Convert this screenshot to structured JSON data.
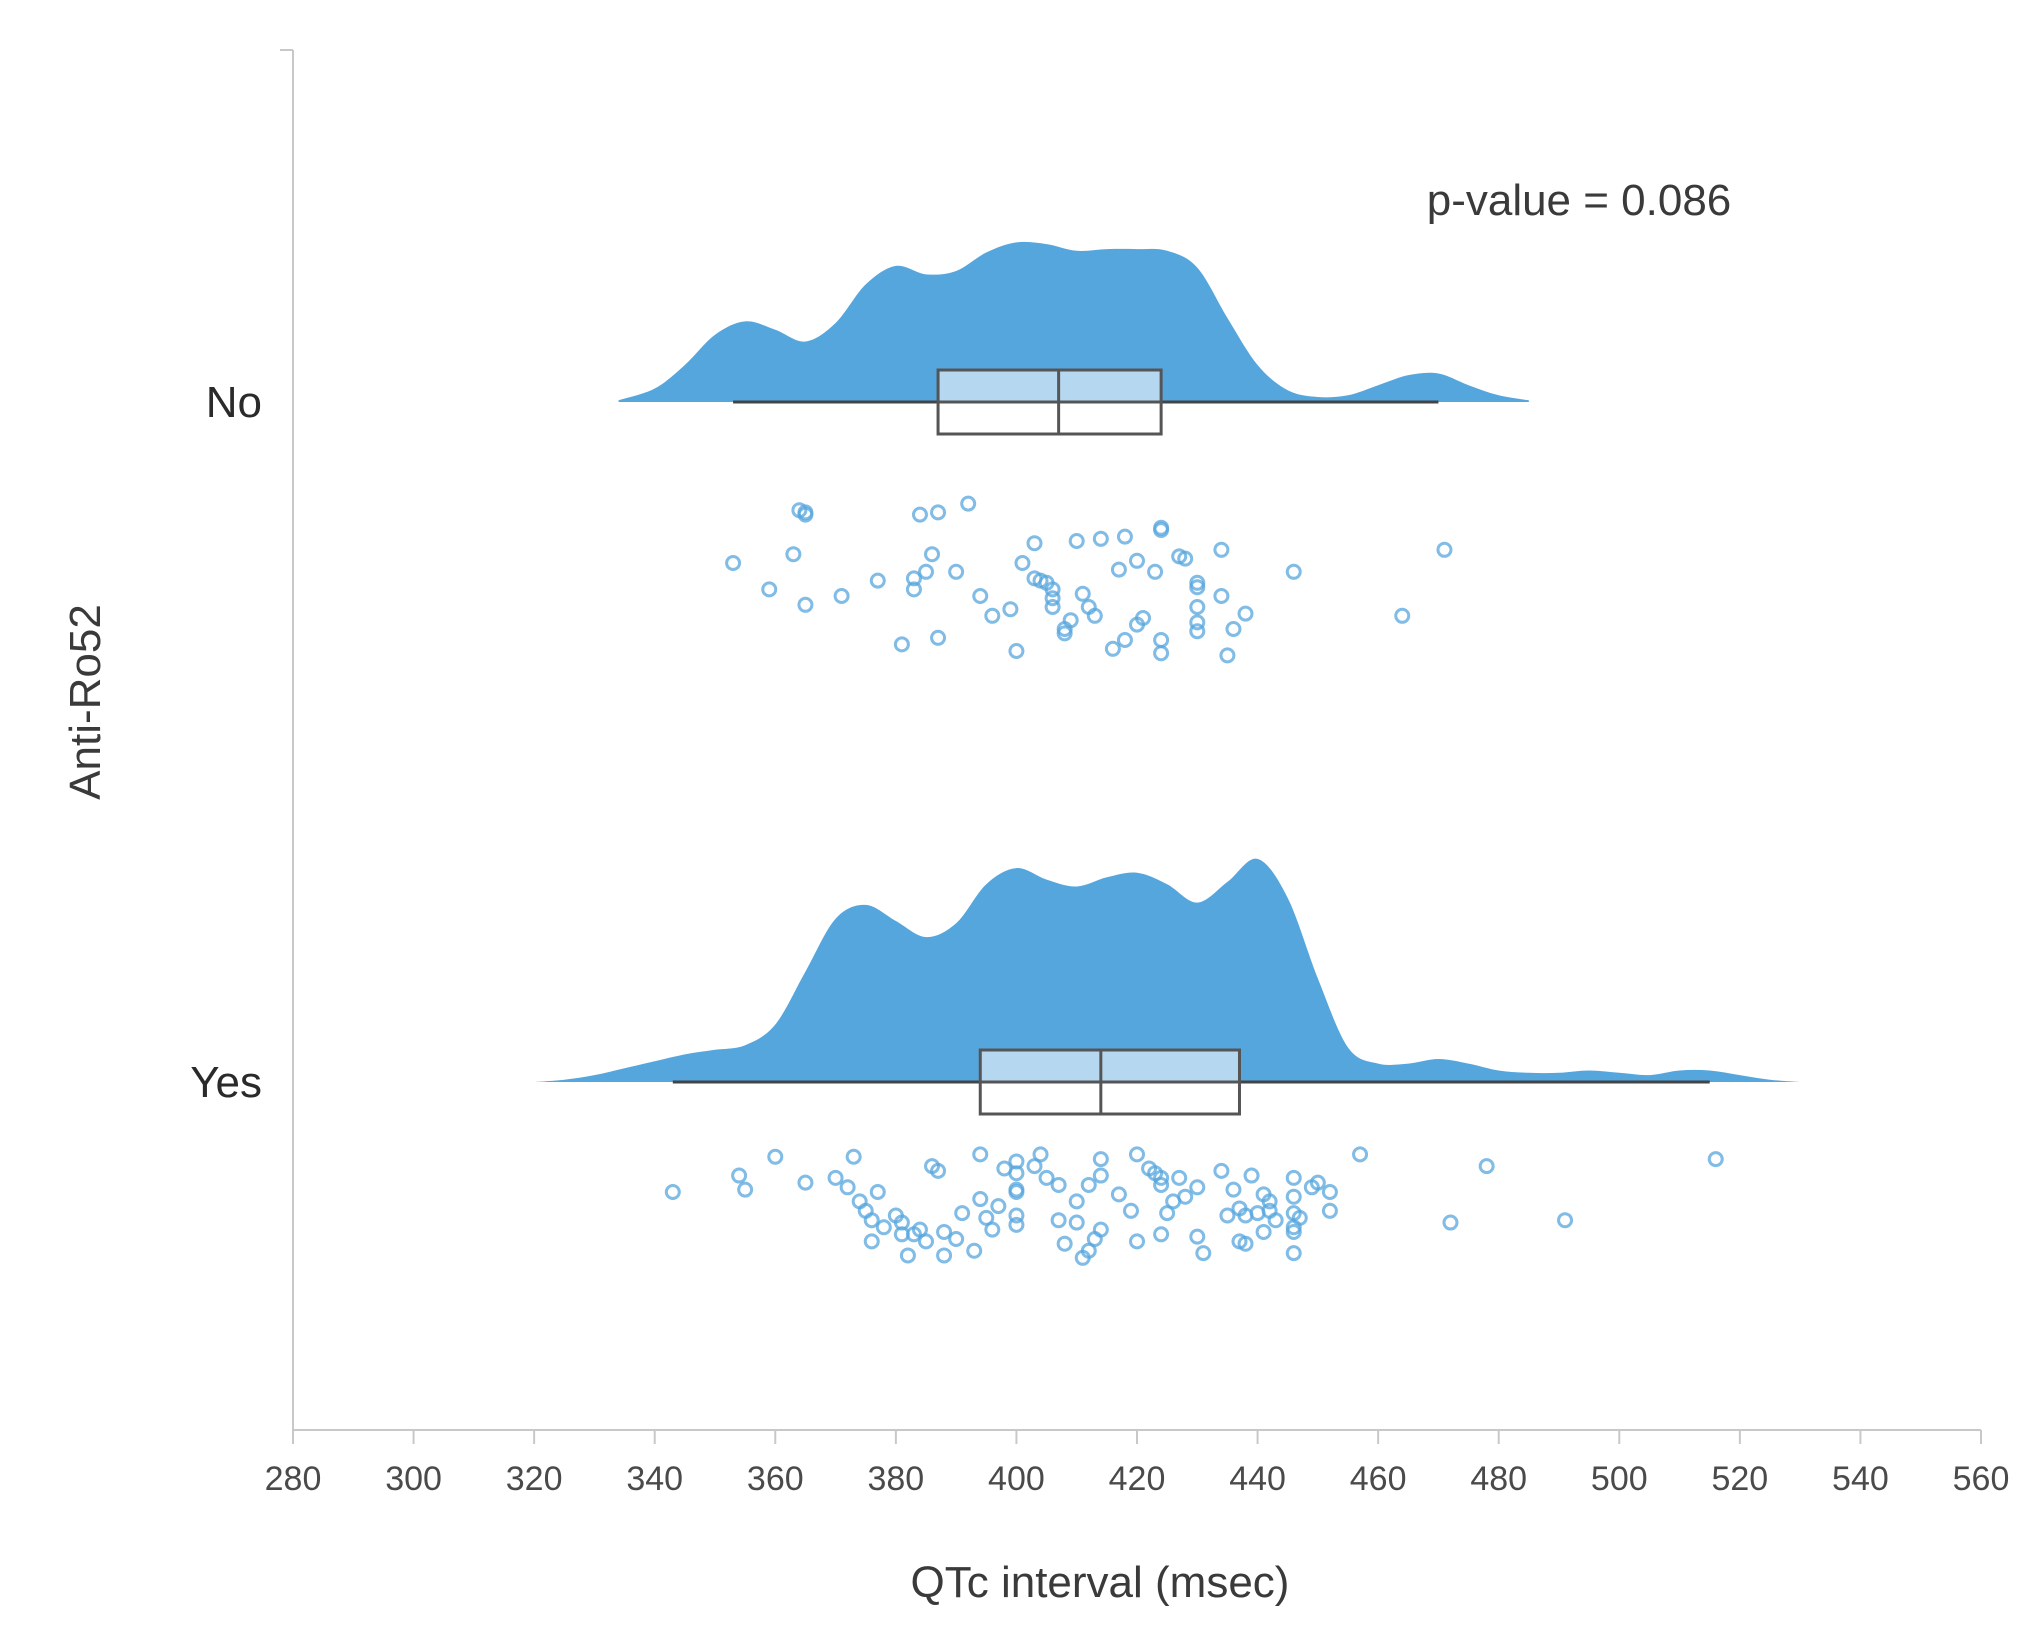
{
  "chart_data": {
    "type": "raincloud",
    "orientation": "horizontal",
    "xlabel": "QTc interval (msec)",
    "ylabel": "Anti-Ro52",
    "xlim": [
      280,
      560
    ],
    "xticks": [
      280,
      300,
      320,
      340,
      360,
      380,
      400,
      420,
      440,
      460,
      480,
      500,
      520,
      540,
      560
    ],
    "annotation": "p-value = 0.086",
    "colors": {
      "density": "#56a6de",
      "box_upper": "#b6d7f0",
      "points": "#56a6de"
    },
    "groups": [
      {
        "name": "No",
        "box": {
          "whisker_low": 353,
          "q1": 387,
          "median": 407,
          "q3": 424,
          "whisker_high": 470
        },
        "density": {
          "x": [
            334,
            340,
            345,
            350,
            355,
            360,
            365,
            370,
            375,
            380,
            385,
            390,
            395,
            400,
            405,
            410,
            415,
            420,
            425,
            430,
            435,
            440,
            445,
            450,
            455,
            460,
            465,
            470,
            475,
            480,
            485
          ],
          "y": [
            0.01,
            0.08,
            0.22,
            0.4,
            0.48,
            0.43,
            0.36,
            0.47,
            0.7,
            0.81,
            0.76,
            0.78,
            0.89,
            0.95,
            0.94,
            0.9,
            0.91,
            0.91,
            0.9,
            0.8,
            0.5,
            0.22,
            0.07,
            0.03,
            0.04,
            0.1,
            0.16,
            0.17,
            0.1,
            0.04,
            0.01
          ]
        },
        "points": [
          364,
          365,
          365,
          384,
          387,
          392,
          403,
          410,
          414,
          418,
          424,
          424,
          353,
          359,
          363,
          365,
          371,
          377,
          383,
          383,
          385,
          386,
          390,
          394,
          396,
          399,
          401,
          403,
          404,
          405,
          406,
          406,
          406,
          408,
          409,
          411,
          412,
          413,
          417,
          420,
          420,
          421,
          423,
          424,
          427,
          428,
          430,
          430,
          430,
          430,
          430,
          434,
          434,
          436,
          438,
          446,
          464,
          471,
          381,
          387,
          400,
          408,
          416,
          418,
          424,
          435
        ],
        "jitter": [
          0.16,
          0.17,
          0.18,
          0.18,
          0.17,
          0.13,
          0.31,
          0.3,
          0.29,
          0.28,
          0.24,
          0.25,
          0.4,
          0.52,
          0.36,
          0.59,
          0.55,
          0.48,
          0.52,
          0.47,
          0.44,
          0.36,
          0.44,
          0.55,
          0.64,
          0.61,
          0.4,
          0.47,
          0.48,
          0.49,
          0.56,
          0.52,
          0.6,
          0.7,
          0.66,
          0.54,
          0.6,
          0.64,
          0.43,
          0.39,
          0.68,
          0.65,
          0.44,
          0.75,
          0.37,
          0.38,
          0.67,
          0.49,
          0.51,
          0.6,
          0.71,
          0.34,
          0.55,
          0.7,
          0.63,
          0.44,
          0.64,
          0.34,
          0.77,
          0.74,
          0.8,
          0.72,
          0.79,
          0.75,
          0.81,
          0.82
        ]
      },
      {
        "name": "Yes",
        "box": {
          "whisker_low": 343,
          "q1": 394,
          "median": 414,
          "q3": 437,
          "whisker_high": 515
        },
        "density": {
          "x": [
            320,
            325,
            330,
            335,
            340,
            345,
            350,
            355,
            360,
            365,
            370,
            375,
            380,
            385,
            390,
            395,
            400,
            405,
            410,
            415,
            420,
            425,
            430,
            435,
            440,
            445,
            450,
            455,
            460,
            465,
            470,
            475,
            480,
            485,
            490,
            495,
            500,
            505,
            510,
            515,
            520,
            525,
            530
          ],
          "y": [
            0.0,
            0.01,
            0.03,
            0.06,
            0.09,
            0.12,
            0.14,
            0.16,
            0.25,
            0.48,
            0.71,
            0.77,
            0.7,
            0.63,
            0.69,
            0.86,
            0.93,
            0.88,
            0.85,
            0.89,
            0.91,
            0.86,
            0.78,
            0.87,
            0.97,
            0.8,
            0.45,
            0.15,
            0.08,
            0.08,
            0.1,
            0.08,
            0.05,
            0.04,
            0.04,
            0.05,
            0.04,
            0.03,
            0.05,
            0.05,
            0.03,
            0.01,
            0.0
          ],
          "max_height_ratio": 1.02
        },
        "points": [
          343,
          354,
          355,
          360,
          365,
          370,
          372,
          373,
          374,
          375,
          376,
          376,
          377,
          378,
          380,
          381,
          381,
          382,
          383,
          384,
          385,
          386,
          387,
          388,
          388,
          390,
          391,
          393,
          394,
          394,
          395,
          396,
          397,
          398,
          400,
          400,
          400,
          400,
          400,
          400,
          403,
          404,
          405,
          407,
          407,
          408,
          410,
          410,
          411,
          412,
          412,
          413,
          414,
          414,
          414,
          417,
          419,
          420,
          420,
          422,
          423,
          424,
          424,
          424,
          425,
          426,
          427,
          428,
          430,
          430,
          431,
          434,
          435,
          436,
          437,
          437,
          438,
          438,
          439,
          440,
          441,
          441,
          442,
          442,
          443,
          446,
          446,
          446,
          446,
          446,
          446,
          447,
          449,
          450,
          452,
          452,
          457,
          472,
          478,
          491,
          516
        ],
        "jitter": [
          0.2,
          0.13,
          0.19,
          0.05,
          0.16,
          0.14,
          0.18,
          0.05,
          0.24,
          0.28,
          0.32,
          0.41,
          0.2,
          0.35,
          0.3,
          0.38,
          0.33,
          0.47,
          0.38,
          0.36,
          0.41,
          0.09,
          0.11,
          0.37,
          0.47,
          0.4,
          0.29,
          0.45,
          0.04,
          0.23,
          0.31,
          0.36,
          0.26,
          0.1,
          0.07,
          0.12,
          0.19,
          0.2,
          0.3,
          0.34,
          0.09,
          0.04,
          0.14,
          0.17,
          0.32,
          0.42,
          0.33,
          0.24,
          0.48,
          0.17,
          0.45,
          0.4,
          0.06,
          0.13,
          0.36,
          0.21,
          0.28,
          0.41,
          0.04,
          0.1,
          0.12,
          0.14,
          0.17,
          0.38,
          0.29,
          0.24,
          0.14,
          0.22,
          0.18,
          0.39,
          0.46,
          0.11,
          0.3,
          0.19,
          0.27,
          0.41,
          0.3,
          0.42,
          0.13,
          0.29,
          0.21,
          0.37,
          0.24,
          0.28,
          0.32,
          0.14,
          0.22,
          0.29,
          0.37,
          0.35,
          0.46,
          0.31,
          0.18,
          0.16,
          0.2,
          0.28,
          0.04,
          0.33,
          0.09,
          0.32,
          0.06
        ]
      }
    ]
  }
}
